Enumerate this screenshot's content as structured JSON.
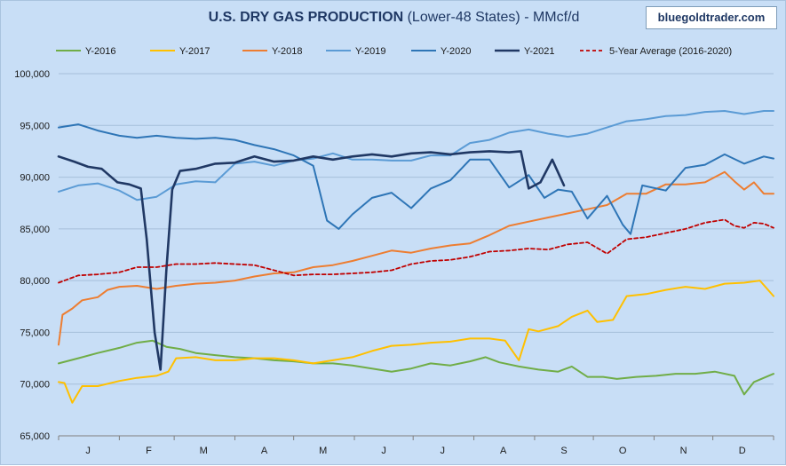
{
  "title": {
    "bold": "U.S. DRY GAS PRODUCTION",
    "rest": " (Lower-48 States) - MMcf/d"
  },
  "brand": "bluegoldtrader.com",
  "chart_data": {
    "type": "line",
    "title": "U.S. DRY GAS PRODUCTION (Lower-48 States) - MMcf/d",
    "ylim": [
      65000,
      100000
    ],
    "yticks": [
      65000,
      70000,
      75000,
      80000,
      85000,
      90000,
      95000,
      100000
    ],
    "ytick_labels": [
      "65,000",
      "70,000",
      "75,000",
      "80,000",
      "85,000",
      "90,000",
      "95,000",
      "100,000"
    ],
    "x_domain": [
      0,
      365
    ],
    "x_ticks": [
      {
        "label": "J",
        "day": 0
      },
      {
        "label": "F",
        "day": 31
      },
      {
        "label": "M",
        "day": 59
      },
      {
        "label": "A",
        "day": 90
      },
      {
        "label": "M",
        "day": 120
      },
      {
        "label": "J",
        "day": 151
      },
      {
        "label": "J",
        "day": 181
      },
      {
        "label": "A",
        "day": 212
      },
      {
        "label": "S",
        "day": 243
      },
      {
        "label": "O",
        "day": 273
      },
      {
        "label": "N",
        "day": 304
      },
      {
        "label": "D",
        "day": 334
      }
    ],
    "legend_position": "top",
    "grid": "horizontal",
    "series": [
      {
        "name": "Y-2016",
        "color": "#70ad47",
        "dash": false,
        "width": 2,
        "points": [
          [
            0,
            72000
          ],
          [
            10,
            72500
          ],
          [
            20,
            73000
          ],
          [
            31,
            73500
          ],
          [
            40,
            74000
          ],
          [
            48,
            74200
          ],
          [
            55,
            73600
          ],
          [
            62,
            73400
          ],
          [
            70,
            73000
          ],
          [
            80,
            72800
          ],
          [
            90,
            72600
          ],
          [
            100,
            72500
          ],
          [
            110,
            72300
          ],
          [
            120,
            72200
          ],
          [
            130,
            72000
          ],
          [
            140,
            72000
          ],
          [
            150,
            71800
          ],
          [
            160,
            71500
          ],
          [
            170,
            71200
          ],
          [
            180,
            71500
          ],
          [
            190,
            72000
          ],
          [
            200,
            71800
          ],
          [
            210,
            72200
          ],
          [
            218,
            72600
          ],
          [
            225,
            72100
          ],
          [
            235,
            71700
          ],
          [
            245,
            71400
          ],
          [
            255,
            71200
          ],
          [
            262,
            71700
          ],
          [
            270,
            70700
          ],
          [
            278,
            70700
          ],
          [
            285,
            70500
          ],
          [
            295,
            70700
          ],
          [
            305,
            70800
          ],
          [
            315,
            71000
          ],
          [
            325,
            71000
          ],
          [
            335,
            71200
          ],
          [
            345,
            70800
          ],
          [
            350,
            69000
          ],
          [
            355,
            70200
          ],
          [
            365,
            71000
          ]
        ]
      },
      {
        "name": "Y-2017",
        "color": "#ffc000",
        "dash": false,
        "width": 2,
        "points": [
          [
            0,
            70200
          ],
          [
            3,
            70100
          ],
          [
            7,
            68200
          ],
          [
            12,
            69800
          ],
          [
            20,
            69800
          ],
          [
            31,
            70300
          ],
          [
            40,
            70600
          ],
          [
            50,
            70800
          ],
          [
            56,
            71200
          ],
          [
            60,
            72500
          ],
          [
            70,
            72600
          ],
          [
            80,
            72300
          ],
          [
            90,
            72300
          ],
          [
            100,
            72500
          ],
          [
            110,
            72500
          ],
          [
            120,
            72300
          ],
          [
            130,
            72000
          ],
          [
            140,
            72300
          ],
          [
            150,
            72600
          ],
          [
            160,
            73200
          ],
          [
            170,
            73700
          ],
          [
            180,
            73800
          ],
          [
            190,
            74000
          ],
          [
            200,
            74100
          ],
          [
            210,
            74400
          ],
          [
            220,
            74400
          ],
          [
            228,
            74200
          ],
          [
            235,
            72300
          ],
          [
            240,
            75300
          ],
          [
            245,
            75100
          ],
          [
            255,
            75600
          ],
          [
            262,
            76500
          ],
          [
            270,
            77100
          ],
          [
            275,
            76000
          ],
          [
            283,
            76200
          ],
          [
            290,
            78500
          ],
          [
            300,
            78700
          ],
          [
            310,
            79100
          ],
          [
            320,
            79400
          ],
          [
            330,
            79200
          ],
          [
            340,
            79700
          ],
          [
            350,
            79800
          ],
          [
            358,
            80000
          ],
          [
            365,
            78500
          ]
        ]
      },
      {
        "name": "Y-2018",
        "color": "#ed7d31",
        "dash": false,
        "width": 2,
        "points": [
          [
            0,
            73800
          ],
          [
            2,
            76700
          ],
          [
            7,
            77300
          ],
          [
            12,
            78100
          ],
          [
            20,
            78400
          ],
          [
            25,
            79100
          ],
          [
            31,
            79400
          ],
          [
            40,
            79500
          ],
          [
            50,
            79200
          ],
          [
            60,
            79500
          ],
          [
            70,
            79700
          ],
          [
            80,
            79800
          ],
          [
            90,
            80000
          ],
          [
            100,
            80400
          ],
          [
            110,
            80700
          ],
          [
            120,
            80800
          ],
          [
            130,
            81300
          ],
          [
            140,
            81500
          ],
          [
            150,
            81900
          ],
          [
            160,
            82400
          ],
          [
            170,
            82900
          ],
          [
            180,
            82700
          ],
          [
            190,
            83100
          ],
          [
            200,
            83400
          ],
          [
            210,
            83600
          ],
          [
            220,
            84400
          ],
          [
            230,
            85300
          ],
          [
            240,
            85700
          ],
          [
            250,
            86100
          ],
          [
            260,
            86500
          ],
          [
            270,
            86900
          ],
          [
            280,
            87300
          ],
          [
            290,
            88400
          ],
          [
            300,
            88400
          ],
          [
            310,
            89300
          ],
          [
            320,
            89300
          ],
          [
            330,
            89500
          ],
          [
            340,
            90500
          ],
          [
            345,
            89600
          ],
          [
            350,
            88800
          ],
          [
            355,
            89500
          ],
          [
            360,
            88400
          ],
          [
            365,
            88400
          ]
        ]
      },
      {
        "name": "Y-2019",
        "color": "#5b9bd5",
        "dash": false,
        "width": 2,
        "points": [
          [
            0,
            88600
          ],
          [
            10,
            89200
          ],
          [
            20,
            89400
          ],
          [
            31,
            88700
          ],
          [
            40,
            87800
          ],
          [
            50,
            88100
          ],
          [
            60,
            89300
          ],
          [
            70,
            89600
          ],
          [
            80,
            89500
          ],
          [
            90,
            91300
          ],
          [
            100,
            91500
          ],
          [
            110,
            91100
          ],
          [
            120,
            91600
          ],
          [
            130,
            91800
          ],
          [
            140,
            92300
          ],
          [
            150,
            91700
          ],
          [
            160,
            91700
          ],
          [
            170,
            91600
          ],
          [
            180,
            91600
          ],
          [
            190,
            92100
          ],
          [
            200,
            92100
          ],
          [
            210,
            93300
          ],
          [
            220,
            93600
          ],
          [
            230,
            94300
          ],
          [
            240,
            94600
          ],
          [
            250,
            94200
          ],
          [
            260,
            93900
          ],
          [
            270,
            94200
          ],
          [
            280,
            94800
          ],
          [
            290,
            95400
          ],
          [
            300,
            95600
          ],
          [
            310,
            95900
          ],
          [
            320,
            96000
          ],
          [
            330,
            96300
          ],
          [
            340,
            96400
          ],
          [
            350,
            96100
          ],
          [
            360,
            96400
          ],
          [
            365,
            96400
          ]
        ]
      },
      {
        "name": "Y-2020",
        "color": "#2e75b6",
        "dash": false,
        "width": 2,
        "points": [
          [
            0,
            94800
          ],
          [
            10,
            95100
          ],
          [
            20,
            94500
          ],
          [
            31,
            94000
          ],
          [
            40,
            93800
          ],
          [
            50,
            94000
          ],
          [
            60,
            93800
          ],
          [
            70,
            93700
          ],
          [
            80,
            93800
          ],
          [
            90,
            93600
          ],
          [
            100,
            93100
          ],
          [
            110,
            92700
          ],
          [
            120,
            92100
          ],
          [
            130,
            91100
          ],
          [
            137,
            85800
          ],
          [
            143,
            85000
          ],
          [
            150,
            86400
          ],
          [
            160,
            88000
          ],
          [
            170,
            88500
          ],
          [
            180,
            87000
          ],
          [
            190,
            88900
          ],
          [
            200,
            89700
          ],
          [
            210,
            91700
          ],
          [
            220,
            91700
          ],
          [
            230,
            89000
          ],
          [
            240,
            90200
          ],
          [
            248,
            88000
          ],
          [
            255,
            88800
          ],
          [
            262,
            88600
          ],
          [
            270,
            86000
          ],
          [
            280,
            88200
          ],
          [
            288,
            85400
          ],
          [
            292,
            84500
          ],
          [
            298,
            89200
          ],
          [
            310,
            88700
          ],
          [
            320,
            90900
          ],
          [
            330,
            91200
          ],
          [
            340,
            92200
          ],
          [
            350,
            91300
          ],
          [
            360,
            92000
          ],
          [
            365,
            91800
          ]
        ]
      },
      {
        "name": "Y-2021",
        "color": "#203864",
        "dash": false,
        "width": 2.6,
        "points": [
          [
            0,
            92000
          ],
          [
            8,
            91500
          ],
          [
            15,
            91000
          ],
          [
            22,
            90800
          ],
          [
            30,
            89500
          ],
          [
            36,
            89300
          ],
          [
            42,
            88900
          ],
          [
            45,
            84000
          ],
          [
            49,
            75000
          ],
          [
            52,
            71400
          ],
          [
            55,
            81000
          ],
          [
            58,
            88800
          ],
          [
            62,
            90600
          ],
          [
            70,
            90800
          ],
          [
            80,
            91300
          ],
          [
            90,
            91400
          ],
          [
            100,
            92000
          ],
          [
            110,
            91500
          ],
          [
            120,
            91600
          ],
          [
            130,
            92000
          ],
          [
            140,
            91700
          ],
          [
            150,
            92000
          ],
          [
            160,
            92200
          ],
          [
            170,
            92000
          ],
          [
            180,
            92300
          ],
          [
            190,
            92400
          ],
          [
            200,
            92200
          ],
          [
            210,
            92400
          ],
          [
            220,
            92500
          ],
          [
            230,
            92400
          ],
          [
            236,
            92500
          ],
          [
            240,
            88900
          ],
          [
            246,
            89500
          ],
          [
            252,
            91700
          ],
          [
            258,
            89200
          ]
        ]
      },
      {
        "name": "5-Year Average (2016-2020)",
        "color": "#c00000",
        "dash": true,
        "width": 1.8,
        "points": [
          [
            0,
            79800
          ],
          [
            10,
            80500
          ],
          [
            20,
            80600
          ],
          [
            31,
            80800
          ],
          [
            40,
            81300
          ],
          [
            50,
            81300
          ],
          [
            60,
            81600
          ],
          [
            70,
            81600
          ],
          [
            80,
            81700
          ],
          [
            90,
            81600
          ],
          [
            100,
            81500
          ],
          [
            110,
            81000
          ],
          [
            120,
            80500
          ],
          [
            130,
            80600
          ],
          [
            140,
            80600
          ],
          [
            150,
            80700
          ],
          [
            160,
            80800
          ],
          [
            170,
            81000
          ],
          [
            180,
            81600
          ],
          [
            190,
            81900
          ],
          [
            200,
            82000
          ],
          [
            210,
            82300
          ],
          [
            220,
            82800
          ],
          [
            230,
            82900
          ],
          [
            240,
            83100
          ],
          [
            250,
            83000
          ],
          [
            260,
            83500
          ],
          [
            270,
            83700
          ],
          [
            280,
            82600
          ],
          [
            290,
            84000
          ],
          [
            300,
            84200
          ],
          [
            310,
            84600
          ],
          [
            320,
            85000
          ],
          [
            330,
            85600
          ],
          [
            340,
            85900
          ],
          [
            345,
            85300
          ],
          [
            350,
            85100
          ],
          [
            355,
            85600
          ],
          [
            360,
            85500
          ],
          [
            365,
            85100
          ]
        ]
      }
    ]
  }
}
